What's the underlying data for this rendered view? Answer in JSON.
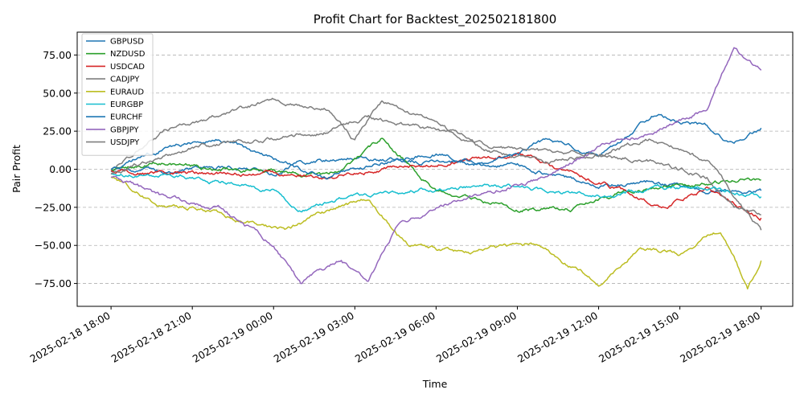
{
  "chart_data": {
    "type": "line",
    "title": "Profit Chart for Backtest_202502181800",
    "xlabel": "Time",
    "ylabel": "Pair Profit",
    "x_range": [
      "2025-02-18 16:45",
      "2025-02-19 19:10"
    ],
    "ylim": [
      -90,
      90
    ],
    "grid": "horizontal dashed",
    "legend_position": "top-left",
    "x_ticks": [
      "2025-02-18 18:00",
      "2025-02-18 21:00",
      "2025-02-19 00:00",
      "2025-02-19 03:00",
      "2025-02-19 06:00",
      "2025-02-19 09:00",
      "2025-02-19 12:00",
      "2025-02-19 15:00",
      "2025-02-19 18:00"
    ],
    "y_ticks": [
      "75.00",
      "50.00",
      "25.00",
      "0.00",
      "−25.00",
      "−50.00",
      "−75.00"
    ],
    "y_tick_values": [
      75,
      50,
      25,
      0,
      -25,
      -50,
      -75
    ],
    "series": [
      {
        "name": "GBPUSD",
        "color": "#1f77b4",
        "x": [
          "2025-02-18 18:00",
          "2025-02-18 20:00",
          "2025-02-18 21:00",
          "2025-02-18 23:00",
          "2025-02-19 00:00",
          "2025-02-19 01:00",
          "2025-02-19 03:00",
          "2025-02-19 06:00",
          "2025-02-19 09:00",
          "2025-02-19 12:00",
          "2025-02-19 14:00",
          "2025-02-19 16:00",
          "2025-02-19 18:00"
        ],
        "values": [
          -2,
          -3,
          0,
          2,
          -3,
          5,
          8,
          5,
          3,
          -10,
          -8,
          -15,
          -14
        ]
      },
      {
        "name": "NZDUSD",
        "color": "#2ca02c",
        "x": [
          "2025-02-18 18:00",
          "2025-02-18 20:00",
          "2025-02-18 22:00",
          "2025-02-19 00:00",
          "2025-02-19 02:00",
          "2025-02-19 03:00",
          "2025-02-19 04:00",
          "2025-02-19 06:00",
          "2025-02-19 09:00",
          "2025-02-19 11:00",
          "2025-02-19 13:00",
          "2025-02-19 15:00",
          "2025-02-19 18:00"
        ],
        "values": [
          0,
          5,
          0,
          -2,
          -5,
          5,
          20,
          -15,
          -25,
          -25,
          -15,
          -10,
          -7
        ]
      },
      {
        "name": "USDCAD",
        "color": "#d62728",
        "x": [
          "2025-02-18 18:00",
          "2025-02-18 21:00",
          "2025-02-19 00:00",
          "2025-02-19 02:00",
          "2025-02-19 04:00",
          "2025-02-19 06:00",
          "2025-02-19 09:00",
          "2025-02-19 11:00",
          "2025-02-19 13:00",
          "2025-02-19 14:30",
          "2025-02-19 16:00",
          "2025-02-19 18:00"
        ],
        "values": [
          -1,
          -3,
          -2,
          -5,
          0,
          5,
          10,
          -3,
          -15,
          -25,
          -12,
          -32
        ]
      },
      {
        "name": "CADJPY",
        "color": "#7f7f7f",
        "x": [
          "2025-02-18 18:00",
          "2025-02-18 20:00",
          "2025-02-18 22:00",
          "2025-02-19 00:00",
          "2025-02-19 02:00",
          "2025-02-19 03:00",
          "2025-02-19 04:00",
          "2025-02-19 06:00",
          "2025-02-19 08:00",
          "2025-02-19 10:00",
          "2025-02-19 12:00",
          "2025-02-19 14:00",
          "2025-02-19 16:00",
          "2025-02-19 17:00",
          "2025-02-19 18:00"
        ],
        "values": [
          0,
          25,
          35,
          45,
          40,
          20,
          45,
          30,
          12,
          5,
          10,
          5,
          -5,
          -25,
          -30
        ]
      },
      {
        "name": "EURAUD",
        "color": "#bcbd22",
        "x": [
          "2025-02-18 18:00",
          "2025-02-18 20:00",
          "2025-02-18 21:00",
          "2025-02-18 23:00",
          "2025-02-19 00:30",
          "2025-02-19 02:30",
          "2025-02-19 03:30",
          "2025-02-19 05:00",
          "2025-02-19 07:00",
          "2025-02-19 09:30",
          "2025-02-19 12:00",
          "2025-02-19 13:30",
          "2025-02-19 15:00",
          "2025-02-19 16:30",
          "2025-02-19 17:30",
          "2025-02-19 18:00"
        ],
        "values": [
          -5,
          -25,
          -25,
          -35,
          -40,
          -25,
          -20,
          -50,
          -55,
          -50,
          -75,
          -50,
          -55,
          -40,
          -78,
          -60
        ]
      },
      {
        "name": "EURGBP",
        "color": "#17becf",
        "x": [
          "2025-02-18 18:00",
          "2025-02-18 21:00",
          "2025-02-19 00:00",
          "2025-02-19 01:00",
          "2025-02-19 03:00",
          "2025-02-19 06:00",
          "2025-02-19 09:00",
          "2025-02-19 12:00",
          "2025-02-19 14:00",
          "2025-02-19 16:00",
          "2025-02-19 18:00"
        ],
        "values": [
          -3,
          -5,
          -15,
          -25,
          -18,
          -12,
          -12,
          -18,
          -12,
          -12,
          -18
        ]
      },
      {
        "name": "EURCHF",
        "color": "#1f77b4",
        "x": [
          "2025-02-18 18:00",
          "2025-02-18 20:00",
          "2025-02-18 22:00",
          "2025-02-19 00:00",
          "2025-02-19 02:00",
          "2025-02-19 04:00",
          "2025-02-19 06:00",
          "2025-02-19 08:00",
          "2025-02-19 10:00",
          "2025-02-19 12:00",
          "2025-02-19 14:00",
          "2025-02-19 16:00",
          "2025-02-19 17:00",
          "2025-02-19 18:00"
        ],
        "values": [
          0,
          15,
          20,
          5,
          -5,
          5,
          10,
          5,
          18,
          10,
          35,
          28,
          15,
          27
        ]
      },
      {
        "name": "GBPJPY",
        "color": "#9467bd",
        "x": [
          "2025-02-18 18:00",
          "2025-02-18 20:00",
          "2025-02-18 22:00",
          "2025-02-19 00:00",
          "2025-02-19 01:00",
          "2025-02-19 02:30",
          "2025-02-19 03:30",
          "2025-02-19 04:30",
          "2025-02-19 06:00",
          "2025-02-19 08:00",
          "2025-02-19 10:00",
          "2025-02-19 12:00",
          "2025-02-19 14:00",
          "2025-02-19 16:00",
          "2025-02-19 17:00",
          "2025-02-19 18:00"
        ],
        "values": [
          -5,
          -20,
          -25,
          -50,
          -75,
          -60,
          -75,
          -40,
          -25,
          -15,
          -5,
          15,
          25,
          40,
          80,
          65
        ]
      },
      {
        "name": "USDJPY",
        "color": "#7f7f7f",
        "x": [
          "2025-02-18 18:00",
          "2025-02-18 21:00",
          "2025-02-19 00:00",
          "2025-02-19 02:00",
          "2025-02-19 03:30",
          "2025-02-19 06:00",
          "2025-02-19 08:00",
          "2025-02-19 10:00",
          "2025-02-19 12:00",
          "2025-02-19 14:00",
          "2025-02-19 16:00",
          "2025-02-19 18:00"
        ],
        "values": [
          -3,
          15,
          20,
          25,
          35,
          25,
          15,
          10,
          10,
          20,
          5,
          -40
        ]
      }
    ]
  }
}
